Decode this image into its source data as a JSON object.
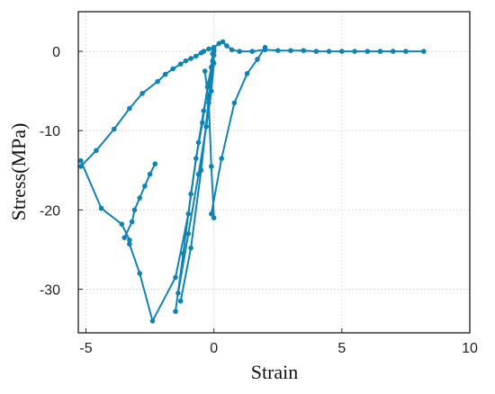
{
  "chart_data": {
    "type": "line",
    "title": "",
    "xlabel": "Strain",
    "ylabel": "Stress(MPa)",
    "xlim": [
      -5.3,
      10
    ],
    "ylim": [
      -35.5,
      5
    ],
    "xticks": [
      -5,
      0,
      5,
      10
    ],
    "yticks": [
      0,
      -10,
      -20,
      -30
    ],
    "x_tick_labels": [
      "-5",
      "0",
      "5",
      "10"
    ],
    "y_tick_labels": [
      "0",
      "-10",
      "-20",
      "-30"
    ],
    "grid": true,
    "legend": "none",
    "series_color": "#0f84b4",
    "series": [
      {
        "x": [
          -5.2,
          -4.6,
          -3.9,
          -3.3,
          -2.8,
          -2.2,
          -1.9,
          -1.6,
          -1.3,
          -1.1,
          -0.9,
          -0.7,
          -0.5,
          -0.4,
          -0.2,
          0.0,
          0.2,
          0.35,
          0.5,
          0.7,
          1.0,
          1.5,
          2.0,
          2.5,
          3.0,
          3.5,
          4.0,
          4.5,
          5.0,
          5.5,
          6.0,
          6.5,
          7.0,
          7.5,
          8.2
        ],
        "y": [
          -14.5,
          -12.5,
          -9.8,
          -7.2,
          -5.3,
          -3.8,
          -2.9,
          -2.2,
          -1.6,
          -1.2,
          -0.9,
          -0.6,
          -0.2,
          0.0,
          0.3,
          0.5,
          1.0,
          1.2,
          0.7,
          0.2,
          0.0,
          0.0,
          0.2,
          0.1,
          0.1,
          0.1,
          0.0,
          0.0,
          0.0,
          0.0,
          0.0,
          0.0,
          0.0,
          0.0,
          0.0
        ]
      },
      {
        "x": [
          -5.2,
          -4.4,
          -3.6,
          -3.3,
          -3.3,
          -2.9,
          -2.4,
          -1.5,
          -1.0,
          -0.7,
          -0.45,
          -0.25,
          -0.1,
          -0.05,
          0.0
        ],
        "y": [
          -13.8,
          -19.8,
          -21.8,
          -23.8,
          -24.3,
          -28.0,
          -34.0,
          -28.5,
          -20.5,
          -13.5,
          -9.0,
          -4.5,
          -2.0,
          -0.3,
          0.2
        ]
      },
      {
        "x": [
          -3.5,
          -3.2,
          -3.1,
          -2.9,
          -2.7,
          -2.5,
          -2.3
        ],
        "y": [
          -23.5,
          -21.5,
          -20.0,
          -18.5,
          -17.0,
          -15.5,
          -14.2
        ]
      },
      {
        "x": [
          -1.5,
          -1.2,
          -0.9,
          -0.6,
          -0.4,
          -0.2,
          -0.05,
          0.0
        ],
        "y": [
          -32.8,
          -25.5,
          -18.0,
          -11.5,
          -7.5,
          -4.0,
          -1.2,
          0.0
        ]
      },
      {
        "x": [
          -1.4,
          -1.0,
          -0.6,
          -0.3,
          -0.1,
          0.0
        ],
        "y": [
          -30.5,
          -23.0,
          -15.5,
          -9.5,
          -5.0,
          -1.5
        ]
      },
      {
        "x": [
          -1.3,
          -0.9,
          -0.5,
          -0.2,
          0.0
        ],
        "y": [
          -31.5,
          -24.8,
          -15.0,
          -6.0,
          -0.5
        ]
      },
      {
        "x": [
          -0.35,
          -0.2,
          -0.1,
          0.0
        ],
        "y": [
          -2.5,
          -6.5,
          -14.5,
          -21.0
        ]
      },
      {
        "x": [
          -0.1,
          0.3,
          0.8,
          1.3,
          1.7,
          2.0
        ],
        "y": [
          -20.5,
          -13.5,
          -6.5,
          -2.8,
          -1.0,
          0.5
        ]
      }
    ]
  }
}
